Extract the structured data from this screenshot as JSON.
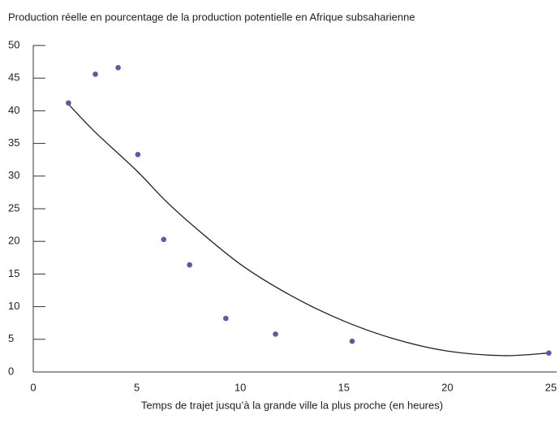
{
  "chart_data": {
    "type": "scatter",
    "title": "Production réelle en pourcentage de la production potentielle en Afrique subsaharienne",
    "x_label": "Temps de trajet jusqu’à la grande ville la plus proche (en heures)",
    "x": [
      1.7,
      3.0,
      4.1,
      5.05,
      6.3,
      7.55,
      9.3,
      11.7,
      15.4,
      24.9
    ],
    "values": [
      41.2,
      45.6,
      46.6,
      33.3,
      20.3,
      16.4,
      8.2,
      5.8,
      4.7,
      2.9
    ],
    "color": "#5b5aa6",
    "trend": {
      "x": [
        1.7,
        3,
        5,
        6.3,
        7.5,
        10,
        12.5,
        15,
        17.5,
        20,
        22.7,
        24.9
      ],
      "values": [
        41,
        36.7,
        30.8,
        26.5,
        23,
        16.5,
        11.6,
        7.8,
        5,
        3.2,
        2.5,
        2.9
      ],
      "color": "#222"
    },
    "xlim": [
      0,
      25
    ],
    "xticks": [
      0,
      5,
      10,
      15,
      20,
      25
    ],
    "ylim": [
      0,
      50
    ],
    "yticks": [
      0,
      5,
      10,
      15,
      20,
      25,
      30,
      35,
      40,
      45,
      50
    ]
  }
}
